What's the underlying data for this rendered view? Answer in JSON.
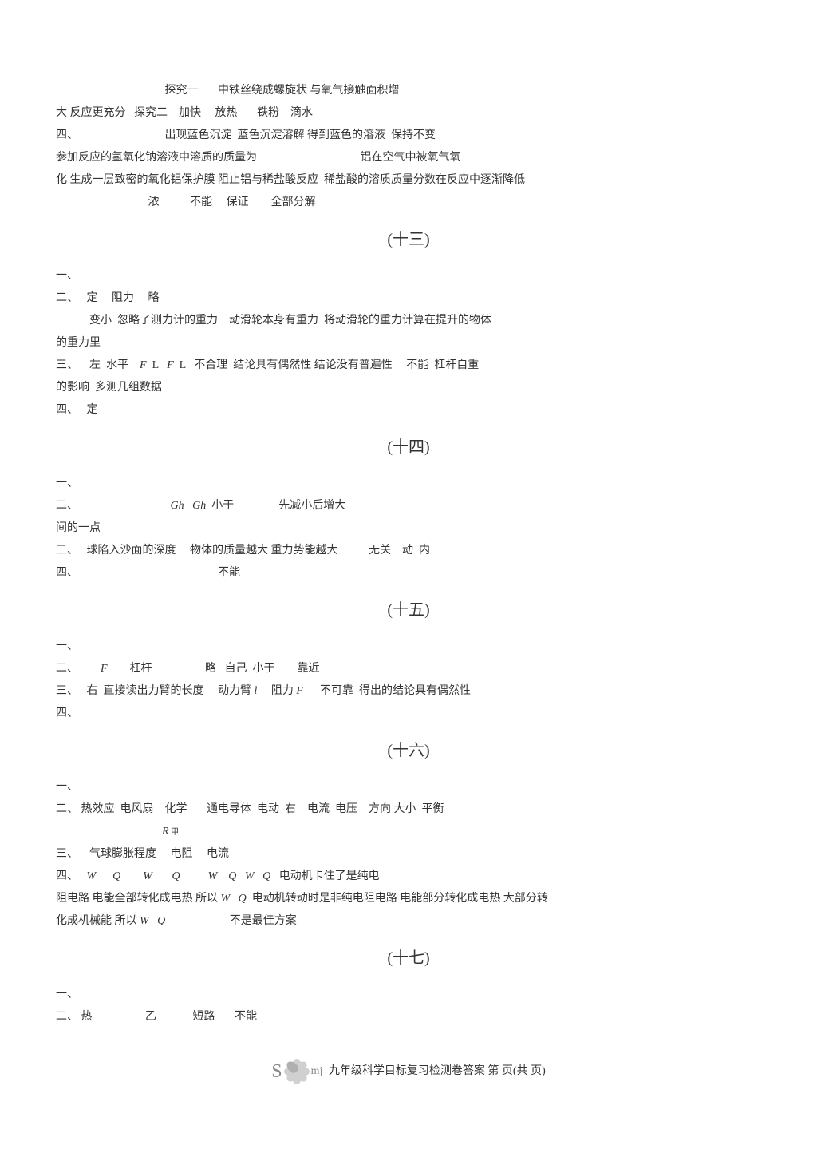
{
  "top": {
    "l1": "                                       探究一       中铁丝绕成螺旋状 与氧气接触面积增",
    "l2": "大 反应更充分   探究二    加快     放热       铁粉    滴水",
    "l3": "四、                               出现蓝色沉淀  蓝色沉淀溶解 得到蓝色的溶液  保持不变",
    "l4": "参加反应的氢氧化钠溶液中溶质的质量为                                     铝在空气中被氧气氧",
    "l5": "化 生成一层致密的氧化铝保护膜 阻止铝与稀盐酸反应  稀盐酸的溶质质量分数在反应中逐渐降低",
    "l6": "                                 浓           不能     保证        全部分解"
  },
  "s13": {
    "title": "(十三)",
    "l1": "一、",
    "l2": "二、   定     阻力     略",
    "l3": "            变小  忽略了测力计的重力    动滑轮本身有重力  将动滑轮的重力计算在提升的物体",
    "l4": "的重力里",
    "l5a": "三、    左  水平    ",
    "l5b": "  L",
    "l5c": "   ",
    "l5d": "  L",
    "l5e": "   不合理  结论具有偶然性 结论没有普遍性     不能  杠杆自重",
    "l6": "的影响  多测几组数据",
    "l7": "四、   定"
  },
  "s14": {
    "title": "(十四)",
    "l1": "一、",
    "l2a": "二、                                 ",
    "l2b": "Gh   Gh",
    "l2c": "  小于                先减小后增大",
    "l3": "间的一点",
    "l4": "三、   球陷入沙面的深度     物体的质量越大 重力势能越大           无关    动  内",
    "l5": "四、                                                  不能"
  },
  "s15": {
    "title": "(十五)",
    "l1": "一、",
    "l2a": "二、        ",
    "l2b": "F",
    "l2c": "        杠杆                   略   自己  小于        靠近",
    "l3": "",
    "l4a": "三、   右  直接读出力臂的长度     动力臂 ",
    "l4b": "l",
    "l4c": "     阻力 ",
    "l4d": "F",
    "l4e": "      不可靠  得出的结论具有偶然性",
    "l5": "四、"
  },
  "s16": {
    "title": "(十六)",
    "l1": "一、",
    "l2": "二、 热效应  电风扇    化学       通电导体  电动  右    电流  电压    方向 大小  平衡",
    "l3a": "                                      ",
    "l3b": "R",
    "l3c": " 甲",
    "l4": "三、    气球膨胀程度     电阻     电流",
    "l5a": "四、   ",
    "l5b": "W",
    "l5c": "      ",
    "l5d": "Q",
    "l5e": "        ",
    "l5f": "W",
    "l5g": "       ",
    "l5h": "Q",
    "l5i": "          ",
    "l5j": "W",
    "l5k": "    ",
    "l5l": "Q",
    "l5m": "   ",
    "l5n": "W",
    "l5o": "   ",
    "l5p": "Q",
    "l5q": "   电动机卡住了是纯电",
    "l6a": "阻电路 电能全部转化成电热 所以 ",
    "l6b": "W",
    "l6c": "   ",
    "l6d": "Q",
    "l6e": "  电动机转动时是非纯电阻电路 电能部分转化成电热 大部分转",
    "l7a": "化成机械能 所以 ",
    "l7b": "W",
    "l7c": "   ",
    "l7d": "Q",
    "l7e": "                       不是最佳方案"
  },
  "s17": {
    "title": "(十七)",
    "l1": "一、",
    "l2": "二、 热                   乙             短路       不能"
  },
  "footer": {
    "text": "九年级科学目标复习检测卷答案   第    页(共   页)"
  }
}
